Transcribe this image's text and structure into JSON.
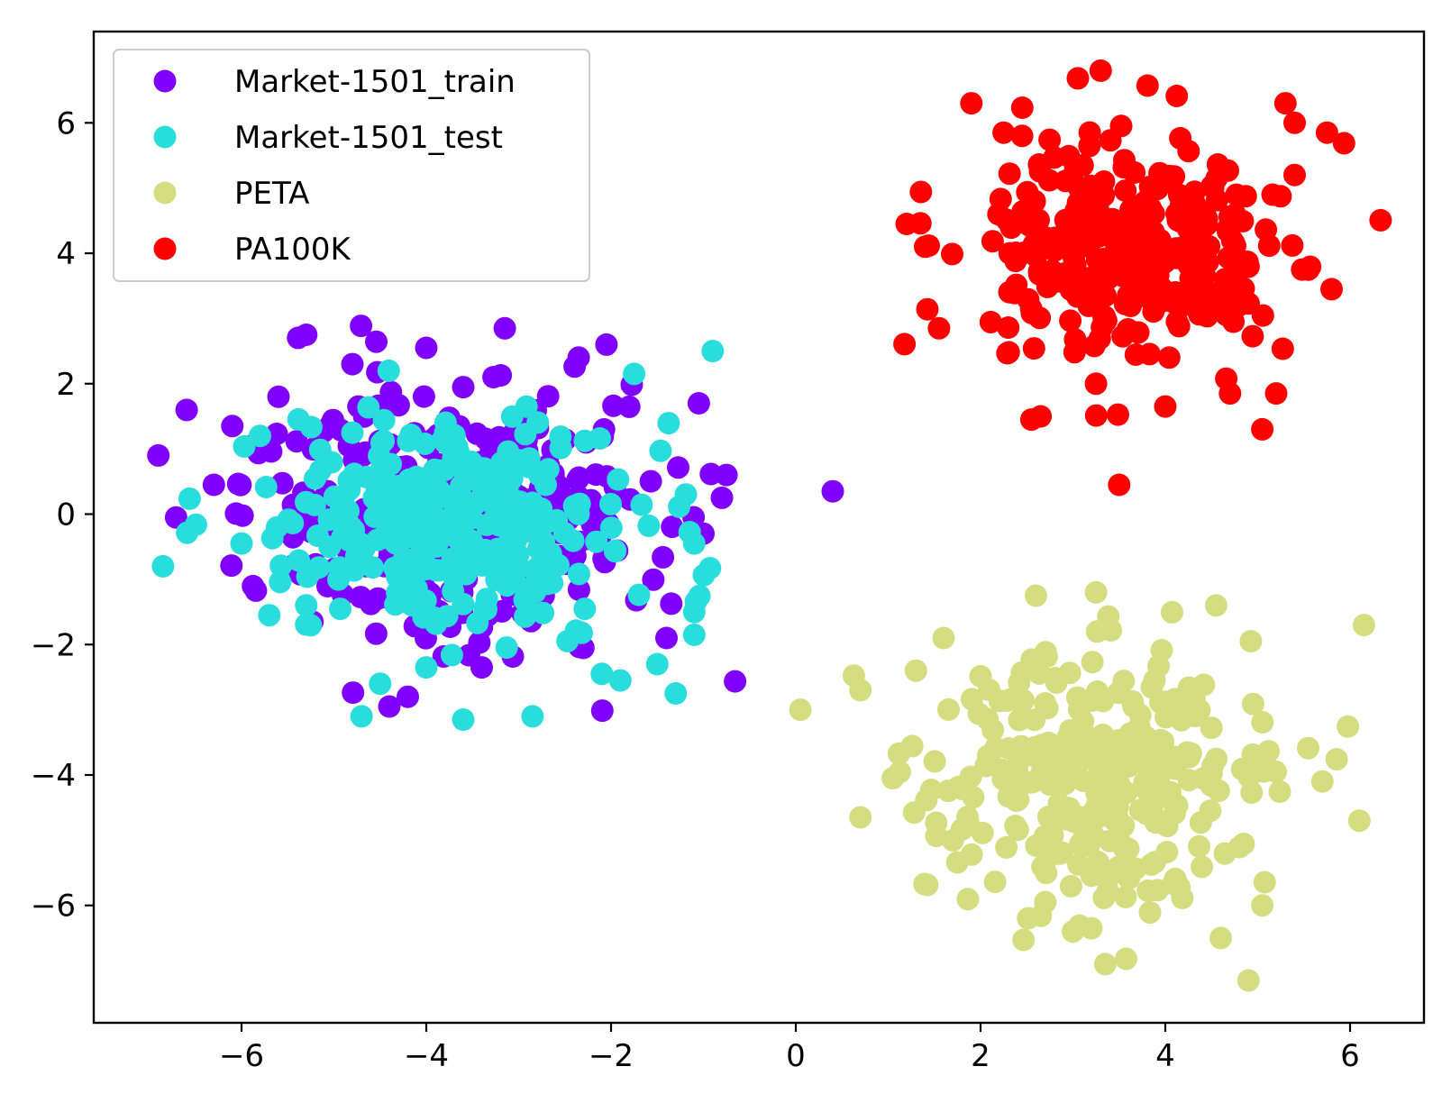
{
  "chart_data": {
    "type": "scatter",
    "title": "",
    "xlabel": "",
    "ylabel": "",
    "xlim": [
      -7.6,
      6.8
    ],
    "ylim": [
      -7.8,
      7.4
    ],
    "xticks": [
      -6,
      -4,
      -2,
      0,
      2,
      4,
      6
    ],
    "yticks": [
      -6,
      -4,
      -2,
      0,
      2,
      4,
      6
    ],
    "grid": false,
    "legend_position": "top-left",
    "series": [
      {
        "name": "Market-1501_train",
        "color": "#8000ff",
        "center": [
          -3.6,
          0.0
        ],
        "spread": [
          1.1,
          0.95
        ],
        "count": 300,
        "outliers": [
          [
            -6.9,
            0.9
          ],
          [
            -6.3,
            0.45
          ],
          [
            -6.1,
            1.35
          ],
          [
            -5.3,
            2.75
          ],
          [
            -4.8,
            2.3
          ],
          [
            -4.0,
            2.55
          ],
          [
            -3.15,
            2.85
          ],
          [
            -2.35,
            2.4
          ],
          [
            -2.05,
            2.6
          ],
          [
            -1.05,
            1.7
          ],
          [
            -0.75,
            0.6
          ],
          [
            -0.8,
            0.25
          ],
          [
            -1.0,
            -0.3
          ],
          [
            -1.4,
            -1.9
          ],
          [
            -4.4,
            -2.95
          ],
          [
            -4.2,
            -2.8
          ],
          [
            -3.4,
            -2.35
          ],
          [
            -2.3,
            -2.05
          ],
          [
            0.4,
            0.35
          ],
          [
            -5.6,
            1.8
          ]
        ]
      },
      {
        "name": "Market-1501_test",
        "color": "#2adddd",
        "center": [
          -3.7,
          -0.1
        ],
        "spread": [
          1.0,
          0.85
        ],
        "count": 300,
        "outliers": [
          [
            -6.85,
            -0.8
          ],
          [
            -6.0,
            -0.45
          ],
          [
            -5.8,
            1.2
          ],
          [
            -4.8,
            1.25
          ],
          [
            -5.3,
            -1.4
          ],
          [
            -4.7,
            -3.1
          ],
          [
            -3.6,
            -3.15
          ],
          [
            -2.85,
            -3.1
          ],
          [
            -0.9,
            2.5
          ],
          [
            -1.75,
            2.15
          ],
          [
            -1.3,
            -2.75
          ],
          [
            -1.1,
            -1.85
          ],
          [
            -1.1,
            -1.5
          ],
          [
            -1.5,
            -2.3
          ],
          [
            -4.5,
            -2.6
          ],
          [
            -4.0,
            -2.35
          ],
          [
            -1.1,
            -0.45
          ],
          [
            -1.9,
            -2.55
          ],
          [
            -2.1,
            -2.45
          ],
          [
            -5.7,
            -1.55
          ]
        ]
      },
      {
        "name": "PETA",
        "color": "#d4dd80",
        "center": [
          3.3,
          -4.1
        ],
        "spread": [
          0.95,
          0.95
        ],
        "count": 300,
        "outliers": [
          [
            0.05,
            -3.0
          ],
          [
            0.7,
            -2.7
          ],
          [
            0.7,
            -4.65
          ],
          [
            1.05,
            -4.05
          ],
          [
            2.6,
            -1.25
          ],
          [
            3.25,
            -1.2
          ],
          [
            4.55,
            -1.4
          ],
          [
            6.15,
            -1.7
          ],
          [
            6.1,
            -4.7
          ],
          [
            3.35,
            -6.9
          ],
          [
            4.9,
            -7.15
          ],
          [
            4.6,
            -6.5
          ],
          [
            3.0,
            -6.4
          ],
          [
            3.2,
            -6.35
          ],
          [
            5.05,
            -6.0
          ],
          [
            2.7,
            -5.95
          ],
          [
            1.6,
            -1.9
          ],
          [
            1.3,
            -2.4
          ],
          [
            1.7,
            -5.0
          ],
          [
            5.7,
            -4.1
          ]
        ]
      },
      {
        "name": "PA100K",
        "color": "#ff0000",
        "center": [
          3.6,
          4.1
        ],
        "spread": [
          0.85,
          0.9
        ],
        "count": 300,
        "outliers": [
          [
            1.9,
            6.3
          ],
          [
            3.3,
            6.8
          ],
          [
            5.3,
            6.3
          ],
          [
            5.4,
            6.0
          ],
          [
            5.75,
            5.85
          ],
          [
            5.8,
            3.45
          ],
          [
            5.05,
            1.3
          ],
          [
            3.5,
            0.45
          ],
          [
            4.0,
            1.65
          ],
          [
            3.25,
            2.0
          ],
          [
            2.55,
            1.45
          ],
          [
            2.65,
            1.5
          ],
          [
            1.55,
            2.85
          ],
          [
            1.2,
            4.45
          ],
          [
            1.4,
            4.1
          ],
          [
            5.2,
            1.85
          ],
          [
            5.4,
            5.2
          ],
          [
            2.25,
            5.85
          ],
          [
            2.45,
            5.8
          ],
          [
            4.7,
            1.85
          ]
        ]
      }
    ]
  }
}
